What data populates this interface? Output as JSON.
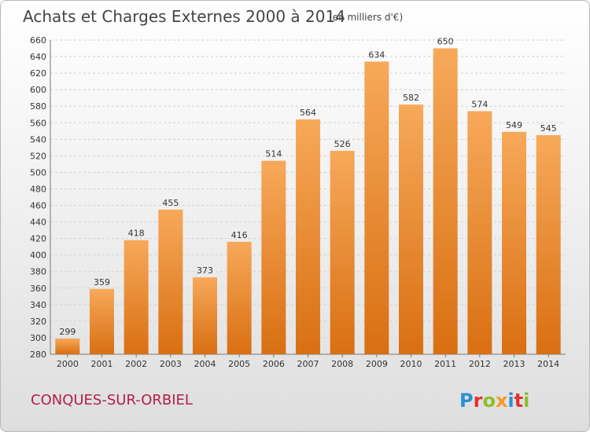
{
  "chart_data": {
    "type": "bar",
    "title": "Achats et Charges Externes 2000 à 2014",
    "subtitle": "(en milliers d'€)",
    "categories": [
      "2000",
      "2001",
      "2002",
      "2003",
      "2004",
      "2005",
      "2006",
      "2007",
      "2008",
      "2009",
      "2010",
      "2011",
      "2012",
      "2013",
      "2014"
    ],
    "values": [
      299,
      359,
      418,
      455,
      373,
      416,
      514,
      564,
      526,
      634,
      582,
      650,
      574,
      549,
      545
    ],
    "ylim": [
      280,
      660
    ],
    "yticks": [
      280,
      300,
      320,
      340,
      360,
      380,
      400,
      420,
      440,
      460,
      480,
      500,
      520,
      540,
      560,
      580,
      600,
      620,
      640,
      660
    ],
    "grid": true,
    "legend": "none",
    "bar_color_top": "#f7a95a",
    "bar_color_bottom": "#d96f12"
  },
  "footer": {
    "commune": "CONQUES-SUR-ORBIEL",
    "logo": "Proxiti"
  }
}
